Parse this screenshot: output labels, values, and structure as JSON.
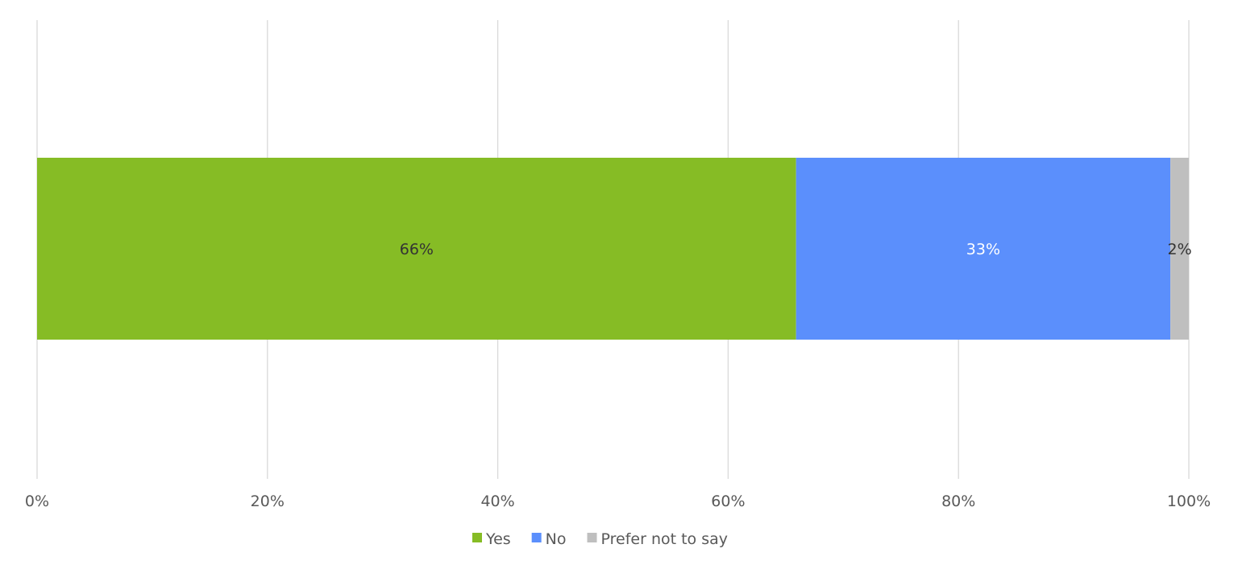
{
  "chart_data": {
    "type": "bar",
    "orientation": "horizontal",
    "stacked": "percent",
    "title": "",
    "xlabel": "",
    "ylabel": "",
    "xlim": [
      0,
      100
    ],
    "x_ticks": [
      "0%",
      "20%",
      "40%",
      "60%",
      "80%",
      "100%"
    ],
    "grid": "vertical",
    "legend_position": "bottom",
    "categories": [
      ""
    ],
    "series": [
      {
        "name": "Yes",
        "values": [
          65.9
        ],
        "label": "66%",
        "color": "#86bc25",
        "label_color": "#333333"
      },
      {
        "name": "No",
        "values": [
          32.5
        ],
        "label": "33%",
        "color": "#5b8ffc",
        "label_color": "#ffffff"
      },
      {
        "name": "Prefer not to say",
        "values": [
          1.6
        ],
        "label": "2%",
        "color": "#bfbfbf",
        "label_color": "#333333"
      }
    ]
  }
}
